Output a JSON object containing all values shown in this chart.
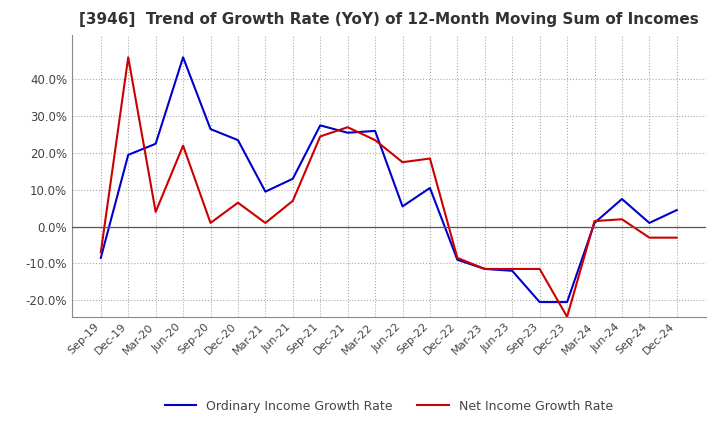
{
  "title": "[3946]  Trend of Growth Rate (YoY) of 12-Month Moving Sum of Incomes",
  "title_fontsize": 11,
  "ylim": [
    -0.245,
    0.52
  ],
  "yticks": [
    -0.2,
    -0.1,
    0.0,
    0.1,
    0.2,
    0.3,
    0.4
  ],
  "ytick_labels": [
    "-20.0%",
    "-10.0%",
    "0.0%",
    "10.0%",
    "20.0%",
    "30.0%",
    "40.0%"
  ],
  "x_labels": [
    "Sep-19",
    "Dec-19",
    "Mar-20",
    "Jun-20",
    "Sep-20",
    "Dec-20",
    "Mar-21",
    "Jun-21",
    "Sep-21",
    "Dec-21",
    "Mar-22",
    "Jun-22",
    "Sep-22",
    "Dec-22",
    "Mar-23",
    "Jun-23",
    "Sep-23",
    "Dec-23",
    "Mar-24",
    "Jun-24",
    "Sep-24",
    "Dec-24"
  ],
  "ordinary_income": [
    -0.085,
    0.195,
    0.225,
    0.46,
    0.265,
    0.235,
    0.095,
    0.13,
    0.275,
    0.255,
    0.26,
    0.055,
    0.105,
    -0.09,
    -0.115,
    -0.12,
    -0.205,
    -0.205,
    0.01,
    0.075,
    0.01,
    0.045
  ],
  "net_income": [
    -0.07,
    0.46,
    0.04,
    0.22,
    0.01,
    0.065,
    0.01,
    0.07,
    0.245,
    0.27,
    0.235,
    0.175,
    0.185,
    -0.085,
    -0.115,
    -0.115,
    -0.115,
    -0.245,
    0.015,
    0.02,
    -0.03,
    -0.03
  ],
  "ordinary_color": "#0000cc",
  "net_color": "#cc0000",
  "background_color": "#ffffff",
  "grid_color": "#aaaaaa",
  "legend_ordinary": "Ordinary Income Growth Rate",
  "legend_net": "Net Income Growth Rate"
}
